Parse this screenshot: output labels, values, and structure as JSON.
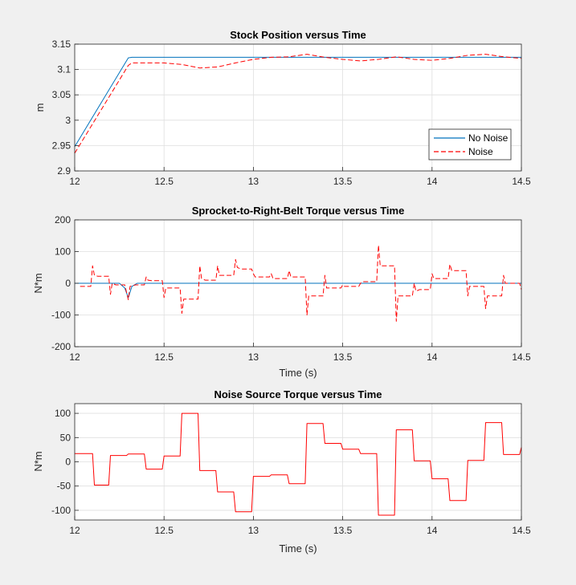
{
  "figure": {
    "background": "#f0f0f0"
  },
  "chart_data": [
    {
      "type": "line",
      "title": "Stock Position versus Time",
      "xlabel": "",
      "ylabel": "m",
      "xlim": [
        12,
        14.5
      ],
      "ylim": [
        2.9,
        3.15
      ],
      "xticks": [
        "12",
        "12.5",
        "13",
        "13.5",
        "14",
        "14.5"
      ],
      "yticks": [
        "2.9",
        "2.95",
        "3",
        "3.05",
        "3.1",
        "3.15"
      ],
      "grid": true,
      "legend": {
        "location": "bottom-right",
        "entries": [
          "No Noise",
          "Noise"
        ]
      },
      "series": [
        {
          "name": "No Noise",
          "color": "#0072BD",
          "style": "solid",
          "x": [
            12,
            12.3,
            12.32,
            14.5
          ],
          "y": [
            2.948,
            3.123,
            3.124,
            3.124
          ]
        },
        {
          "name": "Noise",
          "color": "#FF0000",
          "style": "dashed",
          "x": [
            12,
            12.3,
            12.32,
            12.5,
            12.6,
            12.7,
            12.8,
            12.9,
            13.0,
            13.1,
            13.2,
            13.3,
            13.4,
            13.5,
            13.6,
            13.7,
            13.8,
            13.9,
            14.0,
            14.1,
            14.2,
            14.3,
            14.4,
            14.5
          ],
          "y": [
            2.935,
            3.108,
            3.113,
            3.113,
            3.11,
            3.103,
            3.105,
            3.113,
            3.12,
            3.124,
            3.125,
            3.13,
            3.124,
            3.12,
            3.117,
            3.12,
            3.125,
            3.12,
            3.118,
            3.122,
            3.128,
            3.13,
            3.125,
            3.122
          ]
        }
      ]
    },
    {
      "type": "line",
      "title": "Sprocket-to-Right-Belt Torque versus Time",
      "xlabel": "Time (s)",
      "ylabel": "N*m",
      "xlim": [
        12,
        14.5
      ],
      "ylim": [
        -200,
        200
      ],
      "xticks": [
        "12",
        "12.5",
        "13",
        "13.5",
        "14",
        "14.5"
      ],
      "yticks": [
        "-200",
        "-100",
        "0",
        "100",
        "200"
      ],
      "grid": true,
      "series": [
        {
          "name": "No Noise",
          "color": "#0072BD",
          "style": "solid",
          "x": [
            12,
            12.25,
            12.28,
            12.3,
            12.32,
            12.35,
            14.5
          ],
          "y": [
            0,
            0,
            -15,
            -45,
            -10,
            0,
            0
          ]
        },
        {
          "name": "Noise",
          "color": "#FF0000",
          "style": "dashed",
          "x": [
            12.03,
            12.09,
            12.1,
            12.11,
            12.13,
            12.19,
            12.2,
            12.21,
            12.23,
            12.28,
            12.3,
            12.31,
            12.34,
            12.39,
            12.4,
            12.41,
            12.43,
            12.49,
            12.5,
            12.51,
            12.53,
            12.59,
            12.6,
            12.61,
            12.63,
            12.69,
            12.7,
            12.71,
            12.73,
            12.79,
            12.8,
            12.81,
            12.83,
            12.89,
            12.9,
            12.91,
            12.93,
            12.99,
            13.0,
            13.01,
            13.03,
            13.09,
            13.1,
            13.11,
            13.13,
            13.19,
            13.2,
            13.21,
            13.23,
            13.29,
            13.3,
            13.31,
            13.33,
            13.39,
            13.4,
            13.41,
            13.43,
            13.49,
            13.5,
            13.51,
            13.53,
            13.59,
            13.6,
            13.61,
            13.63,
            13.69,
            13.7,
            13.71,
            13.73,
            13.79,
            13.8,
            13.81,
            13.83,
            13.89,
            13.9,
            13.91,
            13.93,
            13.99,
            14.0,
            14.01,
            14.03,
            14.09,
            14.1,
            14.11,
            14.13,
            14.19,
            14.2,
            14.21,
            14.23,
            14.29,
            14.3,
            14.31,
            14.33,
            14.39,
            14.4,
            14.41,
            14.43,
            14.49,
            14.5
          ],
          "y": [
            -10,
            -10,
            55,
            25,
            22,
            22,
            -35,
            0,
            -5,
            -5,
            -52,
            -10,
            -5,
            -5,
            20,
            10,
            8,
            8,
            -45,
            -15,
            -15,
            -15,
            -95,
            -50,
            -50,
            -50,
            55,
            15,
            10,
            10,
            55,
            25,
            25,
            25,
            75,
            50,
            45,
            45,
            30,
            20,
            20,
            20,
            30,
            15,
            15,
            15,
            40,
            20,
            20,
            20,
            -100,
            -40,
            -40,
            -40,
            25,
            -15,
            -15,
            -15,
            -5,
            -10,
            -10,
            -10,
            0,
            5,
            5,
            5,
            120,
            55,
            55,
            55,
            -120,
            -40,
            -40,
            -40,
            0,
            -25,
            -20,
            -20,
            30,
            15,
            15,
            15,
            60,
            40,
            40,
            40,
            -40,
            -10,
            -10,
            -10,
            -80,
            -40,
            -40,
            -40,
            25,
            0,
            0,
            0,
            -20
          ]
        }
      ]
    },
    {
      "type": "line",
      "title": "Noise Source Torque versus Time",
      "xlabel": "Time (s)",
      "ylabel": "N*m",
      "xlim": [
        12,
        14.5
      ],
      "ylim": [
        -120,
        120
      ],
      "xticks": [
        "12",
        "12.5",
        "13",
        "13.5",
        "14",
        "14.5"
      ],
      "yticks": [
        "-100",
        "-50",
        "0",
        "50",
        "100"
      ],
      "grid": true,
      "series": [
        {
          "name": "Noise",
          "color": "#FF0000",
          "style": "solid",
          "x": [
            12,
            12.1,
            12.11,
            12.19,
            12.2,
            12.29,
            12.3,
            12.39,
            12.4,
            12.49,
            12.5,
            12.59,
            12.6,
            12.69,
            12.7,
            12.79,
            12.8,
            12.89,
            12.9,
            12.99,
            13.0,
            13.09,
            13.1,
            13.19,
            13.2,
            13.29,
            13.3,
            13.39,
            13.4,
            13.49,
            13.5,
            13.59,
            13.6,
            13.69,
            13.7,
            13.79,
            13.8,
            13.89,
            13.9,
            13.99,
            14.0,
            14.09,
            14.1,
            14.19,
            14.2,
            14.29,
            14.3,
            14.39,
            14.4,
            14.49,
            14.5
          ],
          "y": [
            17,
            17,
            -48,
            -48,
            13,
            13,
            16,
            16,
            -15,
            -15,
            12,
            12,
            100,
            100,
            -18,
            -18,
            -62,
            -62,
            -103,
            -103,
            -30,
            -30,
            -27,
            -27,
            -45,
            -45,
            79,
            79,
            38,
            38,
            26,
            26,
            17,
            17,
            -110,
            -110,
            66,
            66,
            2,
            2,
            -35,
            -35,
            -80,
            -80,
            3,
            3,
            81,
            81,
            15,
            15,
            30
          ]
        }
      ]
    }
  ]
}
